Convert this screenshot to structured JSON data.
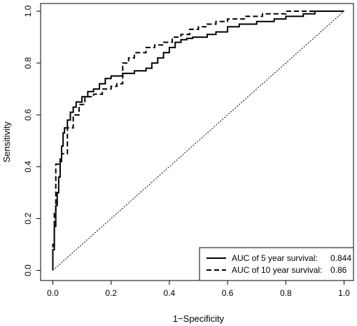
{
  "chart_data": {
    "type": "line",
    "xlabel": "1−Specificity",
    "ylabel": "Sensitivity",
    "xlim": [
      0,
      1
    ],
    "ylim": [
      0,
      1
    ],
    "x_ticks": [
      "0.0",
      "0.2",
      "0.4",
      "0.6",
      "0.8",
      "1.0"
    ],
    "y_ticks": [
      "0.0",
      "0.2",
      "0.4",
      "0.6",
      "0.8",
      "1.0"
    ],
    "legend_placement": "bottom-right",
    "reference_line": {
      "x": [
        0,
        1
      ],
      "y": [
        0,
        1
      ],
      "style": "dotted"
    },
    "series": [
      {
        "name": "AUC of 5 year survival:",
        "auc": "0.844",
        "style": "solid",
        "color": "#000000",
        "x": [
          0,
          0,
          0.005,
          0.005,
          0.01,
          0.01,
          0.015,
          0.015,
          0.02,
          0.02,
          0.025,
          0.025,
          0.03,
          0.03,
          0.035,
          0.035,
          0.04,
          0.04,
          0.05,
          0.05,
          0.06,
          0.06,
          0.07,
          0.07,
          0.08,
          0.08,
          0.1,
          0.1,
          0.12,
          0.12,
          0.14,
          0.14,
          0.16,
          0.16,
          0.18,
          0.18,
          0.2,
          0.2,
          0.24,
          0.24,
          0.28,
          0.28,
          0.32,
          0.32,
          0.34,
          0.34,
          0.36,
          0.36,
          0.38,
          0.38,
          0.4,
          0.4,
          0.42,
          0.42,
          0.44,
          0.44,
          0.46,
          0.46,
          0.48,
          0.48,
          0.53,
          0.53,
          0.56,
          0.56,
          0.6,
          0.6,
          0.64,
          0.64,
          0.7,
          0.7,
          0.76,
          0.76,
          0.8,
          0.8,
          0.86,
          0.86,
          0.9,
          0.9,
          1.0
        ],
        "y": [
          0,
          0.08,
          0.08,
          0.17,
          0.17,
          0.25,
          0.25,
          0.3,
          0.3,
          0.36,
          0.36,
          0.43,
          0.43,
          0.48,
          0.48,
          0.53,
          0.53,
          0.55,
          0.55,
          0.58,
          0.58,
          0.61,
          0.61,
          0.63,
          0.63,
          0.65,
          0.65,
          0.67,
          0.67,
          0.69,
          0.69,
          0.7,
          0.7,
          0.72,
          0.72,
          0.74,
          0.74,
          0.75,
          0.75,
          0.76,
          0.76,
          0.77,
          0.77,
          0.78,
          0.78,
          0.8,
          0.8,
          0.82,
          0.82,
          0.84,
          0.84,
          0.86,
          0.86,
          0.88,
          0.88,
          0.89,
          0.89,
          0.895,
          0.895,
          0.9,
          0.9,
          0.91,
          0.91,
          0.92,
          0.92,
          0.94,
          0.94,
          0.95,
          0.95,
          0.96,
          0.96,
          0.97,
          0.97,
          0.98,
          0.98,
          0.99,
          0.99,
          1.0,
          1.0
        ]
      },
      {
        "name": "AUC of 10 year survival:",
        "auc": "0.86",
        "style": "dashed",
        "color": "#000000",
        "x": [
          0,
          0,
          0.005,
          0.005,
          0.01,
          0.01,
          0.02,
          0.02,
          0.03,
          0.03,
          0.05,
          0.05,
          0.07,
          0.07,
          0.09,
          0.09,
          0.11,
          0.11,
          0.14,
          0.14,
          0.17,
          0.17,
          0.2,
          0.2,
          0.22,
          0.22,
          0.24,
          0.24,
          0.26,
          0.26,
          0.28,
          0.28,
          0.32,
          0.32,
          0.35,
          0.35,
          0.38,
          0.38,
          0.41,
          0.41,
          0.44,
          0.44,
          0.47,
          0.47,
          0.5,
          0.5,
          0.53,
          0.53,
          0.56,
          0.56,
          0.6,
          0.6,
          0.66,
          0.66,
          0.72,
          0.72,
          0.8,
          0.8,
          0.86,
          0.86,
          1.0
        ],
        "y": [
          0,
          0.1,
          0.1,
          0.22,
          0.22,
          0.41,
          0.41,
          0.42,
          0.42,
          0.45,
          0.45,
          0.55,
          0.55,
          0.6,
          0.6,
          0.64,
          0.64,
          0.67,
          0.67,
          0.68,
          0.68,
          0.7,
          0.7,
          0.71,
          0.71,
          0.72,
          0.72,
          0.8,
          0.8,
          0.82,
          0.82,
          0.84,
          0.84,
          0.86,
          0.86,
          0.87,
          0.87,
          0.88,
          0.88,
          0.9,
          0.9,
          0.91,
          0.91,
          0.93,
          0.93,
          0.94,
          0.94,
          0.95,
          0.95,
          0.96,
          0.96,
          0.97,
          0.97,
          0.98,
          0.98,
          0.99,
          0.99,
          1.0,
          1.0,
          1.0,
          1.0
        ]
      }
    ]
  }
}
